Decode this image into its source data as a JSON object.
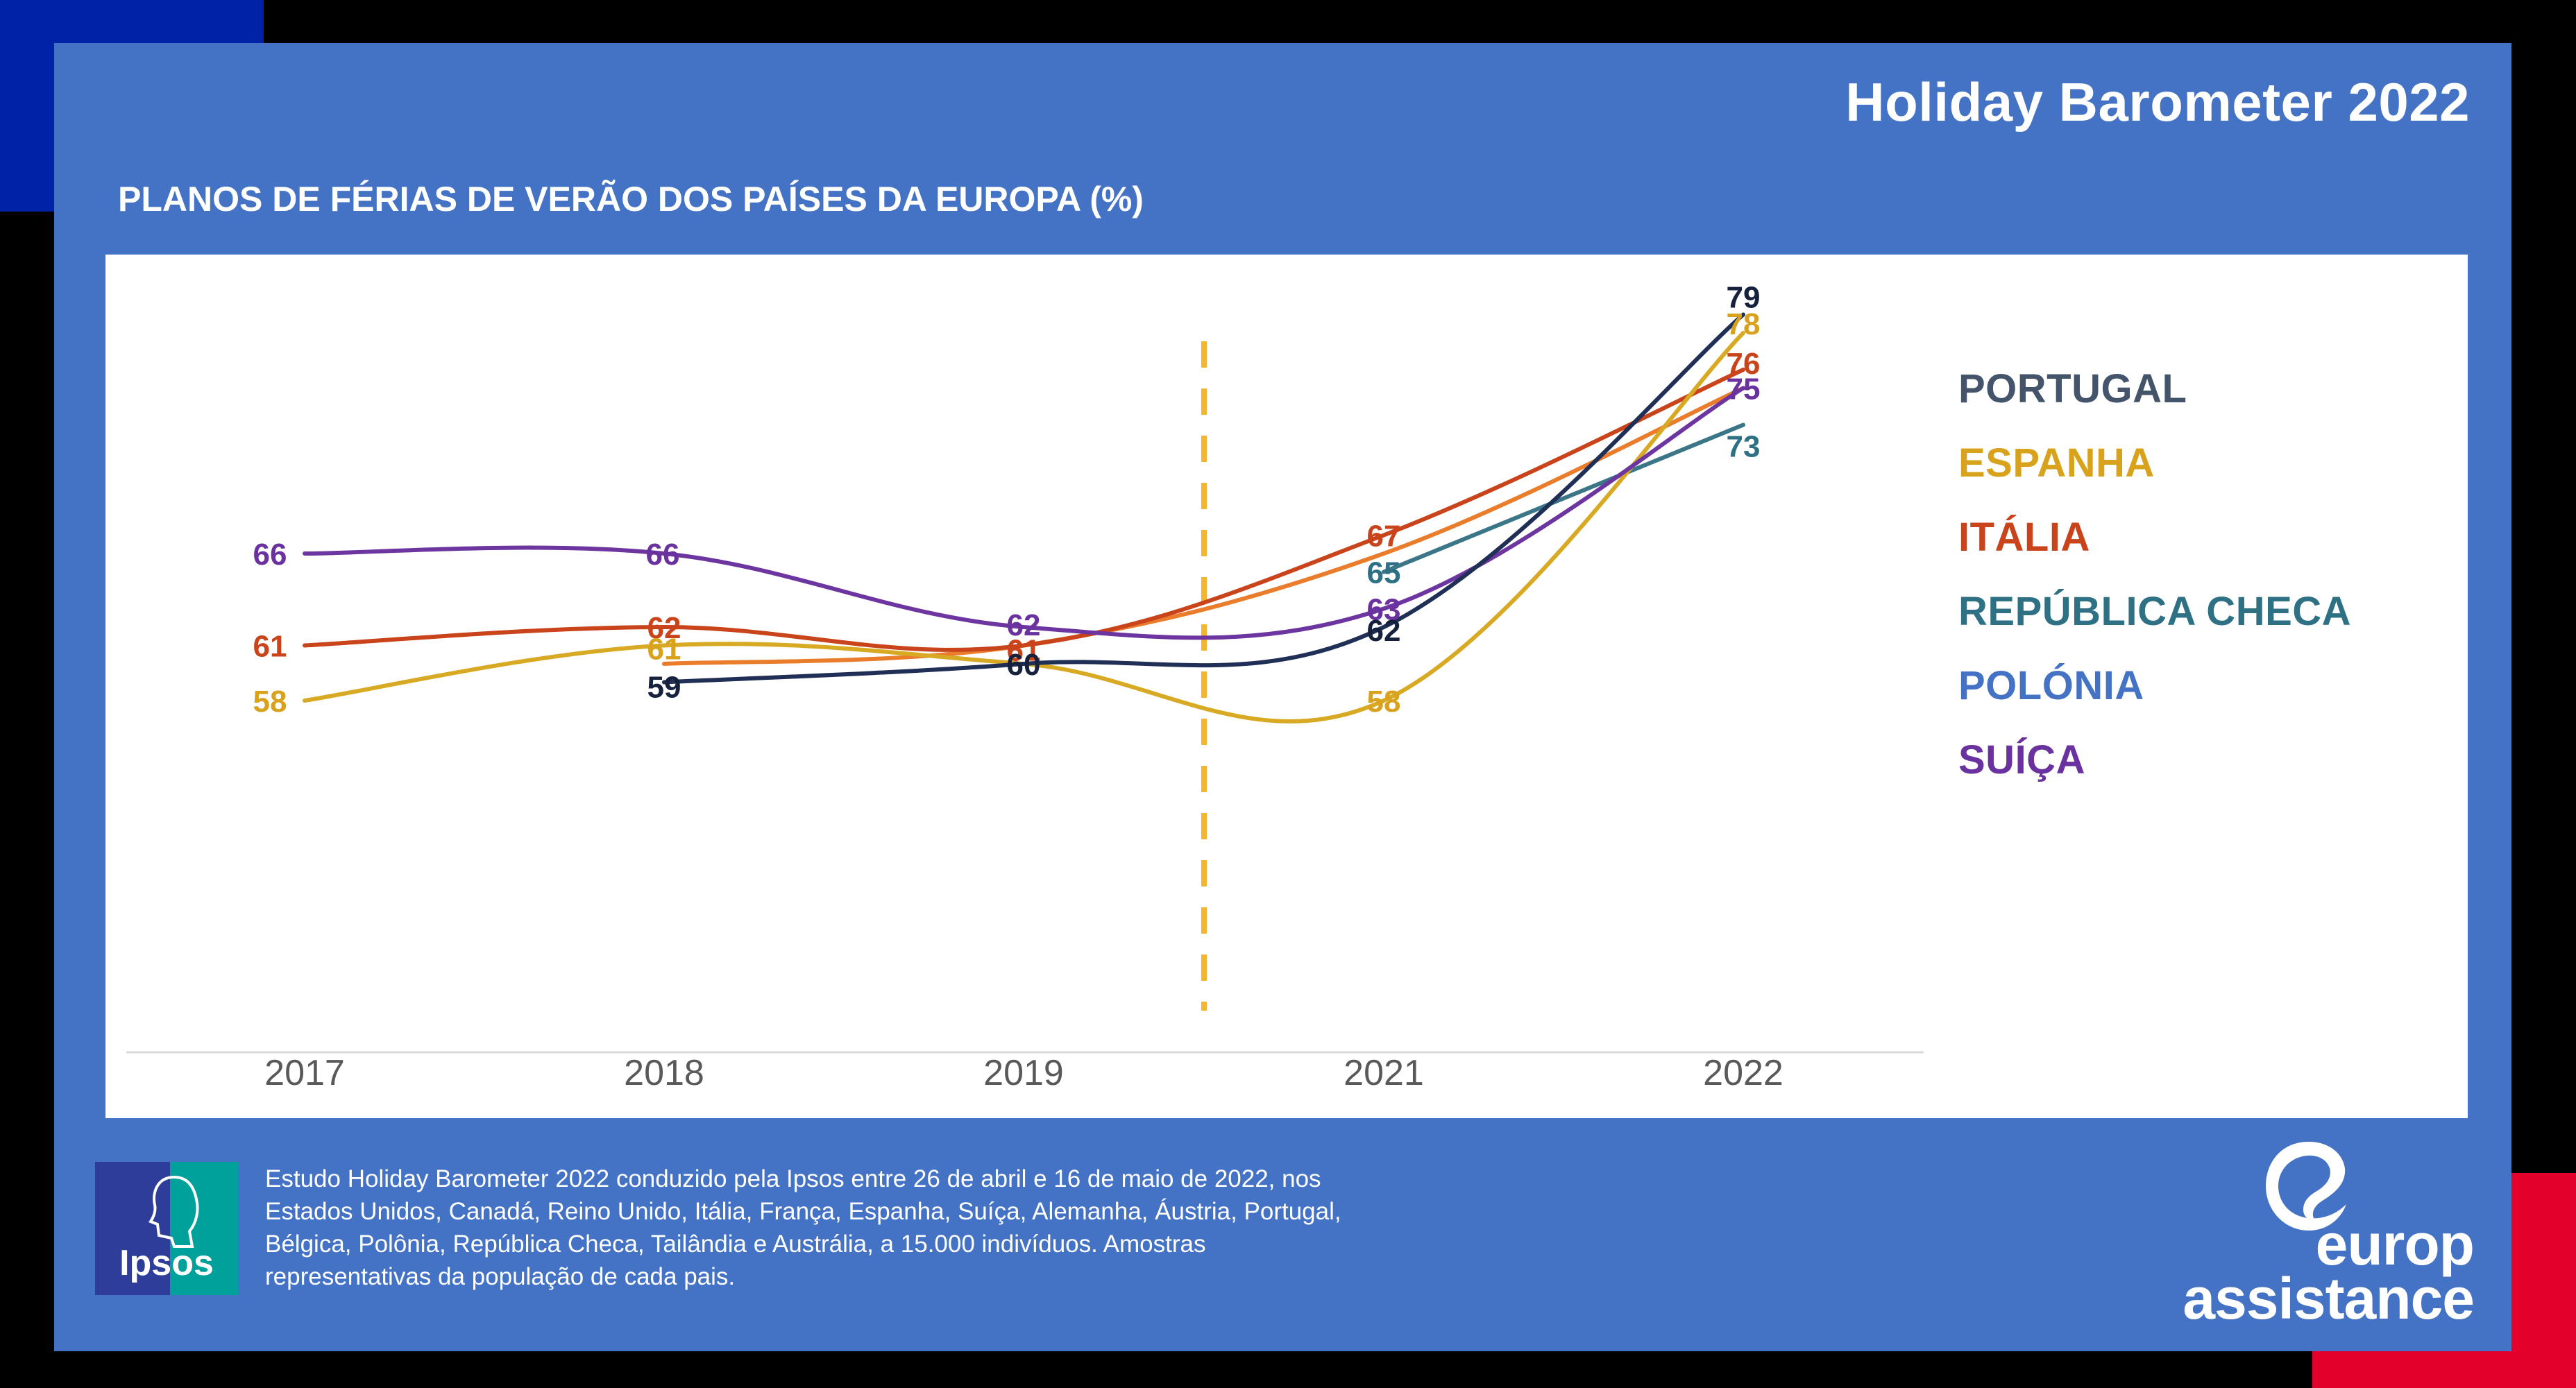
{
  "header": {
    "report_title": "Holiday Barometer 2022",
    "chart_title": "PLANOS DE FÉRIAS DE VERÃO DOS PAÍSES DA EUROPA (%)"
  },
  "chart_data": {
    "type": "line",
    "title": "PLANOS DE FÉRIAS DE VERÃO DOS PAÍSES DA EUROPA (%)",
    "categories": [
      "2017",
      "2018",
      "2019",
      "2021",
      "2022"
    ],
    "ylim": [
      50,
      80
    ],
    "grid": false,
    "legend_position": "right",
    "annotation": "dashed vertical divider between 2019 and 2021",
    "series": [
      {
        "name": "PORTUGAL",
        "color": "#1f2f55",
        "label_color": "#16213e",
        "values": [
          null,
          59,
          60,
          62,
          79
        ]
      },
      {
        "name": "ESPANHA",
        "color": "#d8aa24",
        "label_color": "#d8a21c",
        "values": [
          58,
          61,
          60,
          58,
          78
        ]
      },
      {
        "name": "ITÁLIA",
        "color": "#c9431b",
        "label_color": "#c9431b",
        "values": [
          61,
          62,
          61,
          67,
          76
        ]
      },
      {
        "name": "REPÚBLICA CHECA",
        "color": "#3a7688",
        "label_color": "#2f7184",
        "values": [
          null,
          null,
          null,
          65,
          73
        ]
      },
      {
        "name": "POLÓNIA",
        "color": "#ea7d2c",
        "label_color": "#4472c4",
        "values": [
          null,
          60,
          61,
          66,
          75
        ]
      },
      {
        "name": "SUÍÇA",
        "color": "#6c35a0",
        "label_color": "#6a329f",
        "values": [
          66,
          66,
          62,
          63,
          75
        ]
      }
    ],
    "data_labels": [
      {
        "series": "SUÍÇA",
        "x": "2017",
        "text": "66"
      },
      {
        "series": "ITÁLIA",
        "x": "2017",
        "text": "61"
      },
      {
        "series": "ESPANHA",
        "x": "2017",
        "text": "58"
      },
      {
        "series": "SUÍÇA",
        "x": "2018",
        "text": "66"
      },
      {
        "series": "ITÁLIA",
        "x": "2018",
        "text": "62"
      },
      {
        "series": "ESPANHA",
        "x": "2018",
        "text": "61"
      },
      {
        "series": "PORTUGAL",
        "x": "2018",
        "text": "59"
      },
      {
        "series": "SUÍÇA",
        "x": "2019",
        "text": "62"
      },
      {
        "series": "ITÁLIA",
        "x": "2019",
        "text": "61"
      },
      {
        "series": "PORTUGAL",
        "x": "2019",
        "text": "60"
      },
      {
        "series": "ITÁLIA",
        "x": "2021",
        "text": "67"
      },
      {
        "series": "REPÚBLICA CHECA",
        "x": "2021",
        "text": "65"
      },
      {
        "series": "SUÍÇA",
        "x": "2021",
        "text": "63"
      },
      {
        "series": "PORTUGAL",
        "x": "2021",
        "text": "62"
      },
      {
        "series": "ESPANHA",
        "x": "2021",
        "text": "58"
      },
      {
        "series": "PORTUGAL",
        "x": "2022",
        "text": "79"
      },
      {
        "series": "ESPANHA",
        "x": "2022",
        "text": "78"
      },
      {
        "series": "ITÁLIA",
        "x": "2022",
        "text": "76"
      },
      {
        "series": "SUÍÇA",
        "x": "2022",
        "text": "75"
      },
      {
        "series": "REPÚBLICA CHECA",
        "x": "2022",
        "text": "73"
      }
    ]
  },
  "legend": {
    "items": [
      {
        "label": "PORTUGAL",
        "color": "#44546a"
      },
      {
        "label": "ESPANHA",
        "color": "#d8a21c"
      },
      {
        "label": "ITÁLIA",
        "color": "#c9431b"
      },
      {
        "label": "REPÚBLICA CHECA",
        "color": "#2f7184"
      },
      {
        "label": "POLÓNIA",
        "color": "#4472c4"
      },
      {
        "label": "SUÍÇA",
        "color": "#6a329f"
      }
    ]
  },
  "footer": {
    "note": "Estudo Holiday Barometer 2022 conduzido pela Ipsos entre 26 de abril e 16 de maio de 2022, nos Estados Unidos, Canadá, Reino Unido, Itália, França, Espanha, Suíça, Alemanha, Áustria, Portugal, Bélgica, Polônia, República Checa, Tailândia e Austrália, a 15.000 indivíduos. Amostras representativas da população de cada pais.",
    "ipsos_logo_text": "Ipsos",
    "brand_line1": "europ",
    "brand_line2": "assistance"
  },
  "colors": {
    "background": "#000000",
    "panel": "#4472c4",
    "corner_blue": "#0022a6",
    "corner_red": "#e3002b",
    "divider": "#f2b632",
    "axis": "#d9d9d9",
    "tick_label": "#595959"
  }
}
